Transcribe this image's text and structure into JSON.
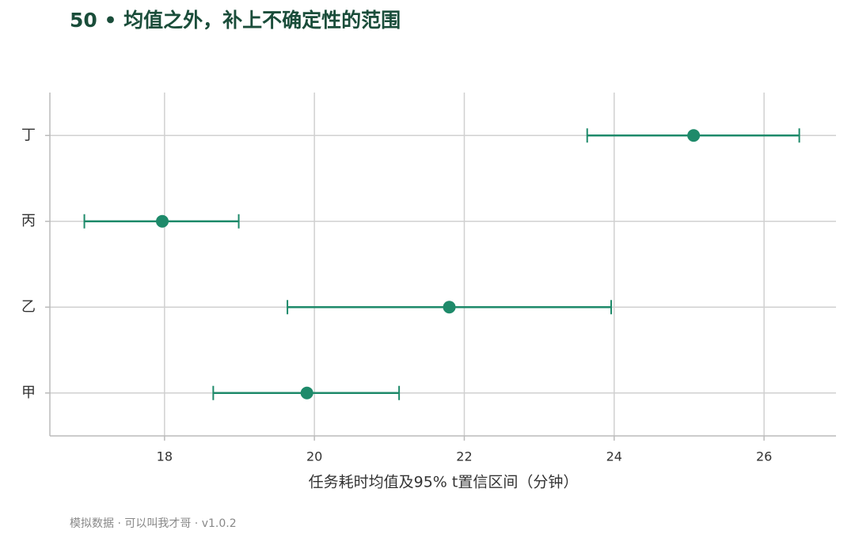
{
  "chart_data": {
    "type": "errorbar",
    "title": "50 • 均值之外，补上不确定性的范围",
    "xlabel": "任务耗时均值及95% t置信区间（分钟）",
    "footer": "模拟数据 · 可以叫我才哥 · v1.0.2",
    "categories": [
      "甲",
      "乙",
      "丙",
      "丁"
    ],
    "series": [
      {
        "color": "#1e8a6a",
        "values": [
          19.9,
          21.8,
          17.97,
          25.06
        ],
        "lower": [
          18.65,
          19.64,
          16.93,
          23.64
        ],
        "upper": [
          21.13,
          23.96,
          18.99,
          26.47
        ]
      }
    ],
    "xlim": [
      16.47,
      26.96
    ],
    "xticks": [
      18,
      20,
      22,
      24,
      26
    ],
    "grid": true
  }
}
